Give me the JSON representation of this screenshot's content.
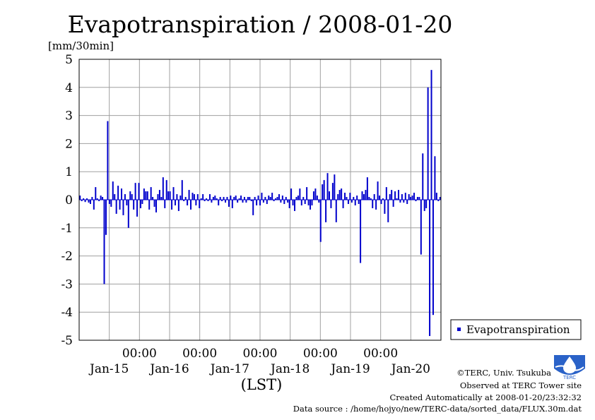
{
  "chart_data": {
    "type": "bar",
    "title": "Evapotranspiration / 2008-01-20",
    "ylabel": "[mm/30min]",
    "xlabel": "(LST)",
    "ylim": [
      -5,
      5
    ],
    "yticks": [
      5,
      4,
      3,
      2,
      1,
      0,
      -1,
      -2,
      -3,
      -4,
      -5
    ],
    "xlim_days": [
      0,
      6
    ],
    "x_unit": "days",
    "midnight_labels": [
      "00:00",
      "00:00",
      "00:00",
      "00:00",
      "00:00"
    ],
    "day_labels": [
      "Jan-15",
      "Jan-16",
      "Jan-17",
      "Jan-18",
      "Jan-19",
      "Jan-20"
    ],
    "grid": true,
    "legend_position": "right",
    "series": [
      {
        "name": "Evapotranspiration",
        "color": "#0000cc",
        "values": [
          0.15,
          -0.05,
          0.05,
          -0.08,
          0.05,
          -0.1,
          -0.15,
          0.1,
          -0.35,
          0.45,
          0.05,
          -0.05,
          0.15,
          0.1,
          -3.0,
          -1.25,
          2.8,
          -0.15,
          -0.25,
          0.65,
          0.2,
          -0.5,
          0.5,
          -0.35,
          0.4,
          -0.55,
          0.2,
          -0.2,
          -1.0,
          0.3,
          0.2,
          -0.35,
          0.6,
          -0.6,
          0.6,
          -0.3,
          -0.15,
          0.4,
          0.3,
          0.3,
          -0.35,
          0.45,
          0.1,
          -0.25,
          -0.45,
          0.2,
          0.35,
          0.1,
          0.8,
          -0.3,
          0.7,
          0.3,
          0.3,
          -0.35,
          0.45,
          -0.2,
          0.2,
          -0.4,
          0.15,
          0.7,
          -0.05,
          0.1,
          -0.2,
          0.35,
          -0.35,
          0.25,
          0.2,
          -0.2,
          0.2,
          -0.3,
          0.05,
          0.2,
          -0.05,
          0.05,
          -0.05,
          0.2,
          -0.1,
          0.1,
          0.15,
          0.05,
          -0.2,
          0.1,
          -0.05,
          0.1,
          -0.1,
          0.1,
          -0.25,
          0.15,
          -0.3,
          0.1,
          0.15,
          -0.1,
          0.05,
          0.15,
          -0.1,
          0.1,
          -0.1,
          0.1,
          0.1,
          -0.05,
          -0.55,
          0.1,
          -0.2,
          0.15,
          -0.2,
          0.25,
          -0.1,
          0.1,
          -0.15,
          0.15,
          0.1,
          0.25,
          -0.05,
          0.05,
          0.1,
          0.2,
          -0.1,
          0.15,
          -0.15,
          0.1,
          -0.1,
          -0.3,
          0.4,
          -0.2,
          -0.4,
          0.1,
          0.15,
          0.4,
          -0.2,
          0.1,
          -0.15,
          0.45,
          -0.2,
          -0.35,
          -0.2,
          0.3,
          0.4,
          0.15,
          -0.1,
          -1.5,
          0.55,
          0.7,
          -0.8,
          0.95,
          0.3,
          -0.3,
          0.6,
          0.9,
          -0.8,
          0.2,
          0.35,
          0.4,
          -0.3,
          0.25,
          0.1,
          -0.15,
          0.25,
          -0.1,
          0.1,
          -0.2,
          0.15,
          -0.15,
          -2.25,
          0.3,
          0.2,
          0.35,
          0.8,
          0.1,
          0.05,
          -0.3,
          0.2,
          -0.35,
          0.65,
          0.15,
          -0.15,
          0.05,
          -0.5,
          0.45,
          -0.8,
          0.2,
          0.35,
          -0.25,
          0.3,
          0.05,
          0.35,
          -0.1,
          0.2,
          -0.1,
          0.25,
          -0.15,
          0.2,
          0.1,
          0.15,
          0.25,
          -0.05,
          0.1,
          0.1,
          -1.95,
          1.65,
          -0.4,
          -0.3,
          4.0,
          -4.85,
          4.62,
          -4.1,
          1.55,
          0.25,
          -0.05,
          0.1
        ]
      }
    ]
  },
  "credits": {
    "copyright": "©TERC, Univ. Tsukuba",
    "observed": "Observed at TERC Tower site",
    "created": "Created Automatically at 2008-01-20/23:32:32",
    "source": "Data source : /home/hojyo/new/TERC-data/sorted_data/FLUX.30m.dat"
  },
  "logo": {
    "text": "TERC",
    "icon": "terc-logo-icon"
  }
}
